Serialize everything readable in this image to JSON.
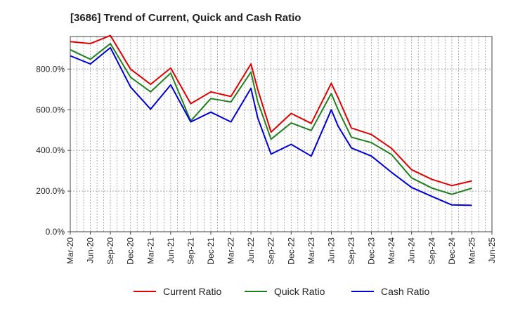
{
  "chart_data": {
    "type": "line",
    "title": "[3686]  Trend of Current, Quick and Cash Ratio",
    "xlabel": "",
    "ylabel": "",
    "ylim": [
      0,
      960
    ],
    "yticks": [
      0,
      200,
      400,
      600,
      800
    ],
    "ytick_labels": [
      "0.0%",
      "200.0%",
      "400.0%",
      "600.0%",
      "800.0%"
    ],
    "x_tick_labels": [
      "Mar-20",
      "Jun-20",
      "Sep-20",
      "Dec-20",
      "Mar-21",
      "Jun-21",
      "Sep-21",
      "Dec-21",
      "Mar-22",
      "Jun-22",
      "Sep-22",
      "Dec-22",
      "Mar-23",
      "Jun-23",
      "Sep-23",
      "Dec-23",
      "Mar-24",
      "Jun-24",
      "Sep-24",
      "Dec-24",
      "Mar-25",
      "Jun-25"
    ],
    "x_months": [
      "2020-03",
      "2020-04",
      "2020-05",
      "2020-06",
      "2020-07",
      "2020-08",
      "2020-09",
      "2020-10",
      "2020-11",
      "2020-12",
      "2021-01",
      "2021-02",
      "2021-03",
      "2021-04",
      "2021-05",
      "2021-06",
      "2021-07",
      "2021-08",
      "2021-09",
      "2021-10",
      "2021-11",
      "2021-12",
      "2022-01",
      "2022-02",
      "2022-03",
      "2022-04",
      "2022-05",
      "2022-06",
      "2022-07",
      "2022-08",
      "2022-09",
      "2022-10",
      "2022-11",
      "2022-12",
      "2023-01",
      "2023-02",
      "2023-03",
      "2023-04",
      "2023-05",
      "2023-06",
      "2023-07",
      "2023-08",
      "2023-09",
      "2023-10",
      "2023-11",
      "2023-12",
      "2024-01",
      "2024-02",
      "2024-03",
      "2024-04",
      "2024-05",
      "2024-06",
      "2024-07",
      "2024-08",
      "2024-09",
      "2024-10",
      "2024-11",
      "2024-12",
      "2025-01",
      "2025-02",
      "2025-03",
      "2025-04",
      "2025-05",
      "2025-06"
    ],
    "series": [
      {
        "name": "Current Ratio",
        "color": "#e00000",
        "x": [
          0,
          3,
          6,
          9,
          12,
          15,
          18,
          21,
          24,
          27,
          28,
          30,
          33,
          36,
          39,
          40,
          42,
          45,
          48,
          51,
          54,
          57,
          60
        ],
        "values": [
          935,
          925,
          965,
          800,
          725,
          805,
          630,
          688,
          665,
          825,
          700,
          490,
          582,
          533,
          730,
          660,
          510,
          478,
          410,
          305,
          258,
          227,
          250
        ]
      },
      {
        "name": "Quick Ratio",
        "color": "#208020",
        "x": [
          0,
          3,
          6,
          9,
          12,
          15,
          18,
          21,
          24,
          27,
          28,
          30,
          33,
          36,
          39,
          40,
          42,
          45,
          48,
          51,
          54,
          57,
          60
        ],
        "values": [
          895,
          848,
          925,
          760,
          688,
          780,
          545,
          655,
          638,
          785,
          640,
          455,
          535,
          498,
          680,
          600,
          465,
          438,
          380,
          265,
          215,
          184,
          214
        ]
      },
      {
        "name": "Cash Ratio",
        "color": "#0000d8",
        "x": [
          0,
          3,
          6,
          9,
          12,
          15,
          18,
          21,
          24,
          27,
          28,
          30,
          33,
          36,
          39,
          40,
          42,
          45,
          48,
          51,
          54,
          57,
          60
        ],
        "values": [
          865,
          825,
          905,
          712,
          603,
          722,
          540,
          588,
          540,
          705,
          560,
          382,
          430,
          372,
          600,
          520,
          412,
          372,
          292,
          218,
          174,
          132,
          130
        ]
      }
    ],
    "legend": {
      "placement": "bottom-center",
      "entries": [
        "Current Ratio",
        "Quick Ratio",
        "Cash Ratio"
      ]
    },
    "grid": true
  }
}
